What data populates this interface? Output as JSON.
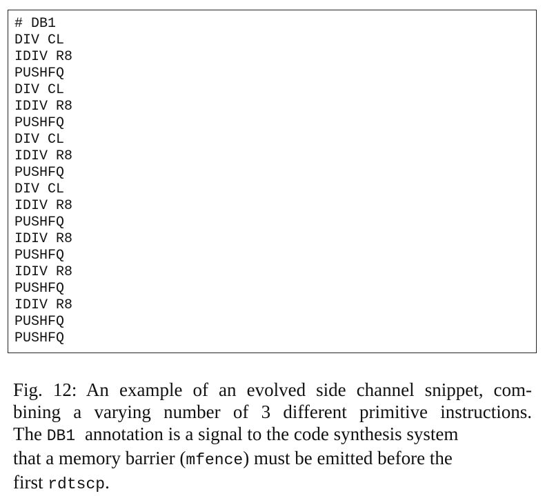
{
  "figure": {
    "code_lines": [
      "# DB1",
      "DIV CL",
      "IDIV R8",
      "PUSHFQ",
      "DIV CL",
      "IDIV R8",
      "PUSHFQ",
      "DIV CL",
      "IDIV R8",
      "PUSHFQ",
      "DIV CL",
      "IDIV R8",
      "PUSHFQ",
      "IDIV R8",
      "PUSHFQ",
      "IDIV R8",
      "PUSHFQ",
      "IDIV R8",
      "PUSHFQ",
      "PUSHFQ"
    ]
  },
  "caption": {
    "line1": "Fig. 12: An example of an evolved side channel snippet, com-",
    "line2": "bining a varying number of 3 different primitive instructions.",
    "line3_pre": "The ",
    "line3_code": "DB1 ",
    "line3_post": " annotation is a signal to the code synthesis system",
    "line4_pre": "that a memory barrier (",
    "line4_code": "mfence",
    "line4_post": ") must be emitted before the",
    "line5_pre": "first ",
    "line5_code": "rdtscp",
    "line5_post": "."
  }
}
